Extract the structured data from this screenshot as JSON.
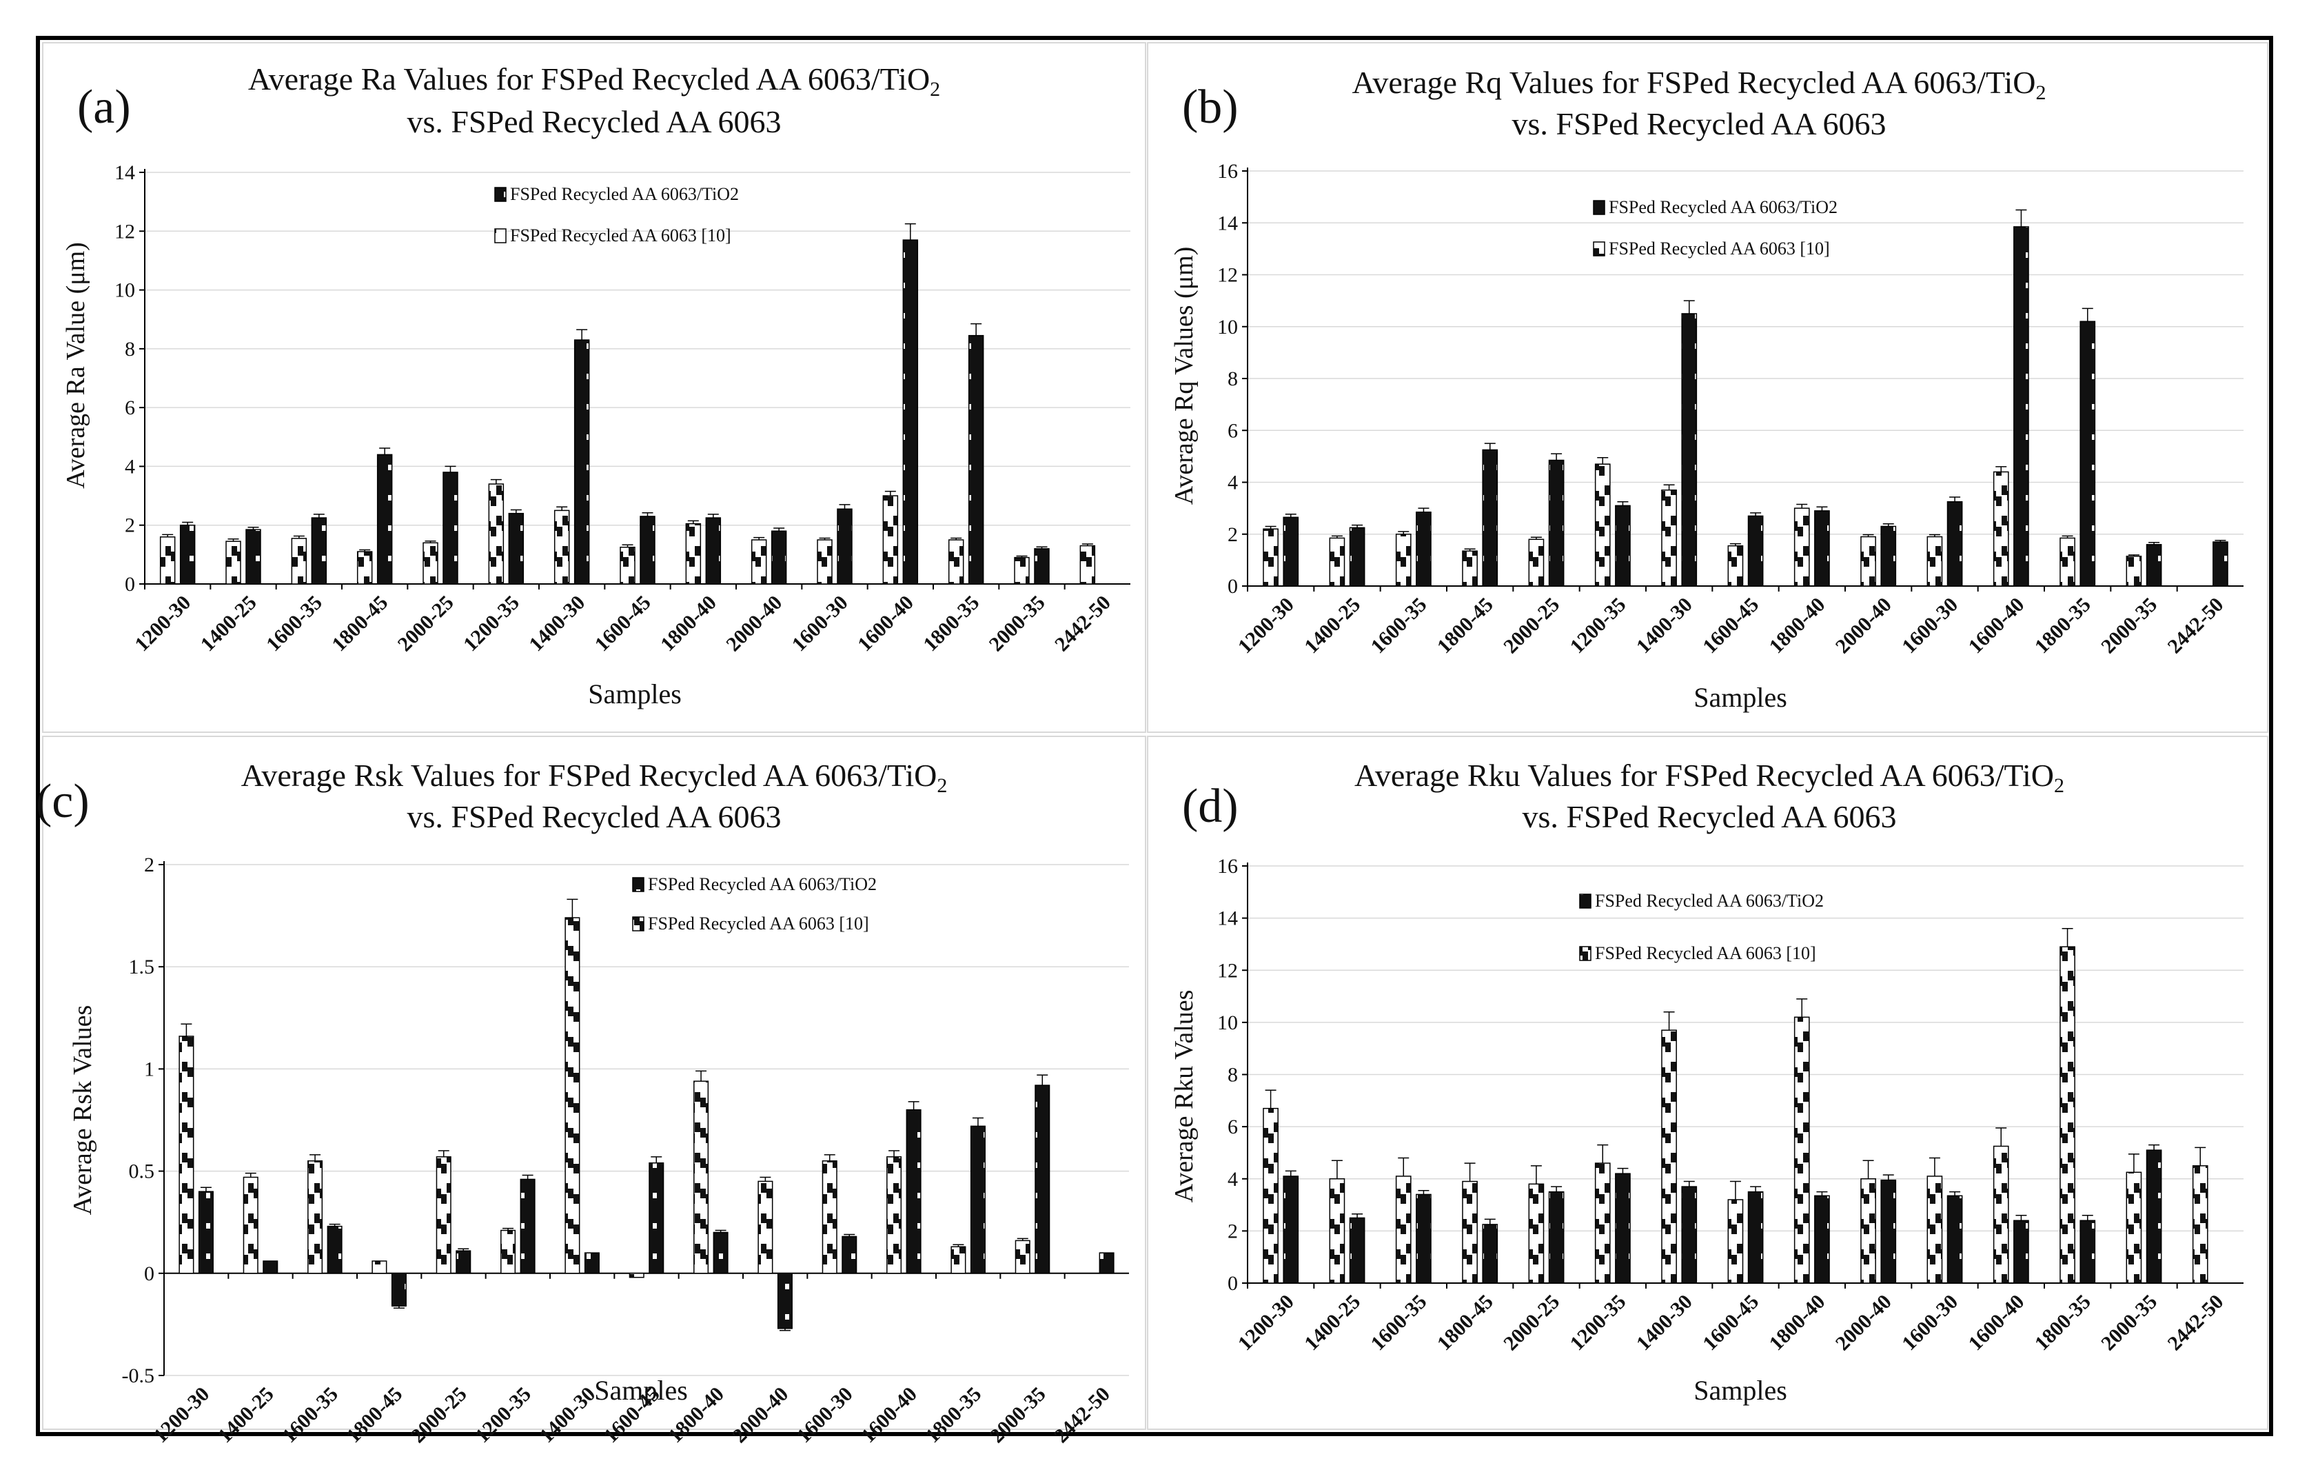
{
  "figure": {
    "x_samples_label": "Samples",
    "legend_tio2": "FSPed Recycled AA 6063/TiO2",
    "legend_base": "FSPed Recycled AA 6063 [10]"
  },
  "chart_data": [
    {
      "panel": "(a)",
      "type": "bar",
      "title_line1": "Average Ra Values for FSPed Recycled AA 6063/TiO",
      "title_sub": "2",
      "title_line2": "vs. FSPed Recycled AA 6063",
      "xlabel": "Samples",
      "ylabel": "Average Ra Value (μm)",
      "ylim": [
        0,
        14
      ],
      "yticks": [
        0,
        2,
        4,
        6,
        8,
        10,
        12,
        14
      ],
      "legend_position": "top-center",
      "categories": [
        "1200-30",
        "1400-25",
        "1600-35",
        "1800-45",
        "2000-25",
        "1200-35",
        "1400-30",
        "1600-45",
        "1800-40",
        "2000-40",
        "1600-30",
        "1600-40",
        "1800-35",
        "2000-35",
        "2442-50"
      ],
      "series": [
        {
          "name": "FSPed Recycled AA 6063 [10]",
          "values": [
            1.6,
            1.45,
            1.55,
            1.1,
            1.4,
            3.4,
            2.5,
            1.25,
            2.05,
            1.5,
            1.5,
            3.0,
            1.5,
            0.9,
            1.3
          ],
          "errors": [
            0.08,
            0.08,
            0.08,
            0.06,
            0.06,
            0.15,
            0.12,
            0.08,
            0.1,
            0.08,
            0.06,
            0.15,
            0.06,
            0.05,
            0.06
          ]
        },
        {
          "name": "FSPed Recycled AA 6063/TiO2",
          "values": [
            2.0,
            1.85,
            2.25,
            4.4,
            3.8,
            2.4,
            8.3,
            2.3,
            2.25,
            1.8,
            2.55,
            11.7,
            8.45,
            1.2,
            null
          ],
          "errors": [
            0.1,
            0.08,
            0.12,
            0.22,
            0.2,
            0.12,
            0.35,
            0.12,
            0.12,
            0.1,
            0.15,
            0.55,
            0.4,
            0.06,
            null
          ]
        }
      ]
    },
    {
      "panel": "(b)",
      "type": "bar",
      "title_line1": "Average Rq Values for FSPed Recycled AA 6063/TiO",
      "title_sub": "2",
      "title_line2": "vs. FSPed Recycled AA 6063",
      "xlabel": "Samples",
      "ylabel": "Average Rq Values (μm)",
      "ylim": [
        0,
        16
      ],
      "yticks": [
        0,
        2,
        4,
        6,
        8,
        10,
        12,
        14,
        16
      ],
      "legend_position": "top-center",
      "categories": [
        "1200-30",
        "1400-25",
        "1600-35",
        "1800-45",
        "2000-25",
        "1200-35",
        "1400-30",
        "1600-45",
        "1800-40",
        "2000-40",
        "1600-30",
        "1600-40",
        "1800-35",
        "2000-35",
        "2442-50"
      ],
      "series": [
        {
          "name": "FSPed Recycled AA 6063 [10]",
          "values": [
            2.2,
            1.85,
            2.0,
            1.35,
            1.8,
            4.7,
            3.7,
            1.55,
            3.0,
            1.9,
            1.9,
            4.4,
            1.85,
            1.15,
            null
          ],
          "errors": [
            0.1,
            0.08,
            0.1,
            0.08,
            0.08,
            0.25,
            0.2,
            0.08,
            0.15,
            0.08,
            0.08,
            0.2,
            0.08,
            0.05,
            null
          ]
        },
        {
          "name": "FSPed Recycled AA 6063/TiO2",
          "values": [
            2.65,
            2.25,
            2.85,
            5.25,
            4.85,
            3.1,
            10.5,
            2.7,
            2.9,
            2.3,
            3.25,
            13.85,
            10.2,
            1.6,
            1.7
          ],
          "errors": [
            0.12,
            0.1,
            0.15,
            0.25,
            0.25,
            0.15,
            0.5,
            0.12,
            0.15,
            0.1,
            0.18,
            0.65,
            0.5,
            0.08,
            0.06
          ]
        }
      ]
    },
    {
      "panel": "(c)",
      "type": "bar",
      "title_line1": "Average Rsk Values for FSPed Recycled AA 6063/TiO",
      "title_sub": "2",
      "title_line2": "vs. FSPed Recycled AA 6063",
      "xlabel": "Samples",
      "ylabel": "Average Rsk Values",
      "ylim": [
        -0.5,
        2
      ],
      "yticks": [
        -0.5,
        0,
        0.5,
        1,
        1.5,
        2
      ],
      "legend_position": "top-right",
      "categories": [
        "1200-30",
        "1400-25",
        "1600-35",
        "1800-45",
        "2000-25",
        "1200-35",
        "1400-30",
        "1600-45",
        "1800-40",
        "2000-40",
        "1600-30",
        "1600-40",
        "1800-35",
        "2000-35",
        "2442-50"
      ],
      "series": [
        {
          "name": "FSPed Recycled AA 6063 [10]",
          "values": [
            1.16,
            0.47,
            0.55,
            0.06,
            0.57,
            0.21,
            1.74,
            -0.02,
            0.94,
            0.45,
            0.55,
            0.57,
            0.13,
            0.16,
            null
          ],
          "errors": [
            0.06,
            0.02,
            0.03,
            0.0,
            0.03,
            0.01,
            0.09,
            0.0,
            0.05,
            0.02,
            0.03,
            0.03,
            0.01,
            0.01,
            null
          ]
        },
        {
          "name": "FSPed Recycled AA 6063/TiO2",
          "values": [
            0.4,
            0.06,
            0.23,
            -0.16,
            0.11,
            0.46,
            0.1,
            0.54,
            0.2,
            -0.27,
            0.18,
            0.8,
            0.72,
            0.92,
            0.1
          ],
          "errors": [
            0.02,
            0.0,
            0.01,
            0.01,
            0.01,
            0.02,
            0.0,
            0.03,
            0.01,
            0.01,
            0.01,
            0.04,
            0.04,
            0.05,
            0.0
          ]
        }
      ]
    },
    {
      "panel": "(d)",
      "type": "bar",
      "title_line1": "Average Rku Values for FSPed Recycled AA 6063/TiO",
      "title_sub": "2",
      "title_line2": "vs. FSPed Recycled AA 6063",
      "xlabel": "Samples",
      "ylabel": "Average Rku Values",
      "ylim": [
        0,
        16
      ],
      "yticks": [
        0,
        2,
        4,
        6,
        8,
        10,
        12,
        14,
        16
      ],
      "legend_position": "top-left",
      "categories": [
        "1200-30",
        "1400-25",
        "1600-35",
        "1800-45",
        "2000-25",
        "1200-35",
        "1400-30",
        "1600-45",
        "1800-40",
        "2000-40",
        "1600-30",
        "1600-40",
        "1800-35",
        "2000-35",
        "2442-50"
      ],
      "series": [
        {
          "name": "FSPed Recycled AA 6063 [10]",
          "values": [
            6.7,
            4.0,
            4.1,
            3.9,
            3.8,
            4.6,
            9.7,
            3.2,
            10.2,
            4.0,
            4.1,
            5.25,
            12.9,
            4.25,
            4.5
          ],
          "errors": [
            0.7,
            0.7,
            0.7,
            0.7,
            0.7,
            0.7,
            0.7,
            0.7,
            0.7,
            0.7,
            0.7,
            0.7,
            0.7,
            0.7,
            0.7
          ]
        },
        {
          "name": "FSPed Recycled AA 6063/TiO2",
          "values": [
            4.1,
            2.5,
            3.4,
            2.25,
            3.5,
            4.2,
            3.7,
            3.5,
            3.35,
            3.95,
            3.35,
            2.4,
            2.4,
            5.1,
            null
          ],
          "errors": [
            0.2,
            0.15,
            0.15,
            0.2,
            0.2,
            0.2,
            0.2,
            0.2,
            0.15,
            0.2,
            0.15,
            0.2,
            0.2,
            0.2,
            null
          ]
        }
      ]
    }
  ]
}
